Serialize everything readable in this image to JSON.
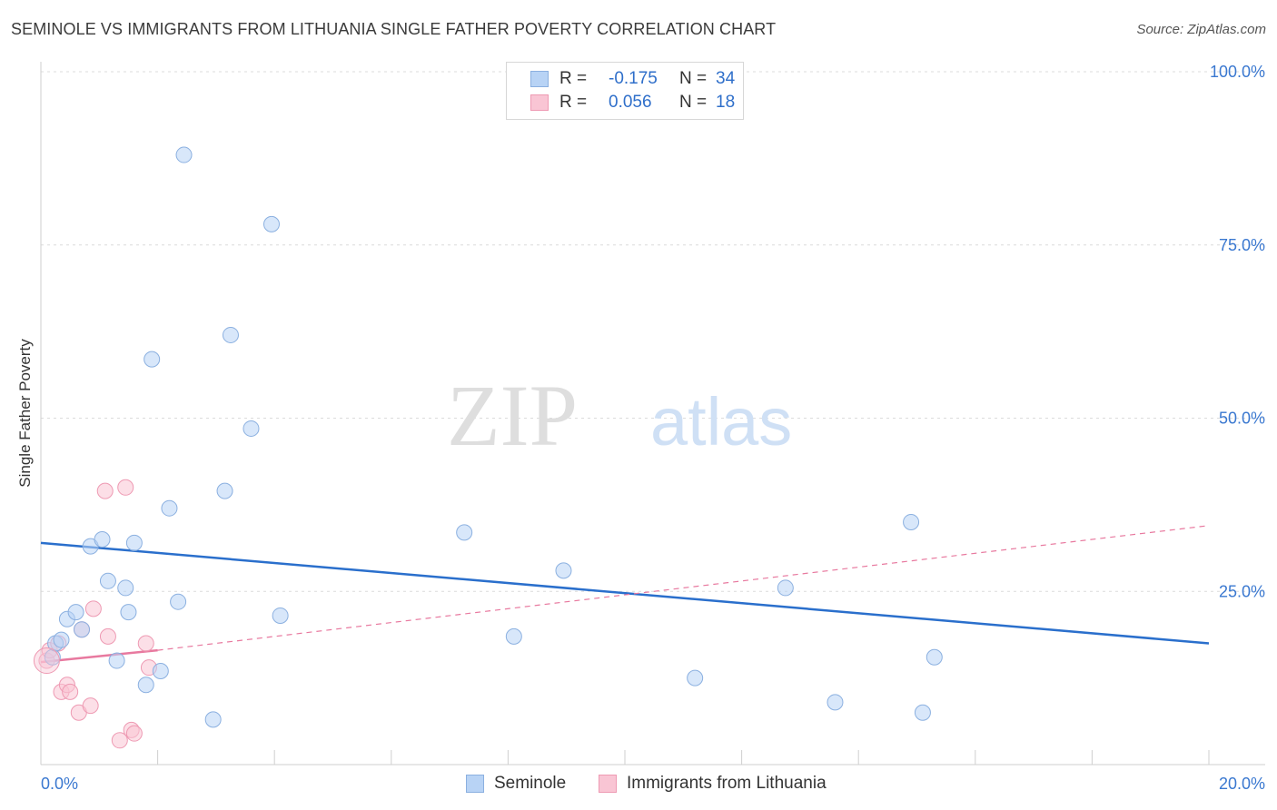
{
  "title": "SEMINOLE VS IMMIGRANTS FROM LITHUANIA SINGLE FATHER POVERTY CORRELATION CHART",
  "source": "Source: ZipAtlas.com",
  "watermark": {
    "zip": "ZIP",
    "atlas": "atlas"
  },
  "colors": {
    "seminole_fill": "#b8d3f5",
    "seminole_stroke": "#8bb0e0",
    "seminole_line": "#2a6fcc",
    "lith_fill": "#f9c5d4",
    "lith_stroke": "#ee9ab3",
    "lith_line": "#e8799f",
    "axis_text": "#3a78d0",
    "grid": "#dcdcdc"
  },
  "legend": {
    "rows": [
      {
        "r_label": "R =",
        "r_value": "-0.175",
        "n_label": "N =",
        "n_value": "34"
      },
      {
        "r_label": "R =",
        "r_value": "0.056",
        "n_label": "N =",
        "n_value": "18"
      }
    ]
  },
  "chart_data": {
    "type": "scatter",
    "title": "SEMINOLE VS IMMIGRANTS FROM LITHUANIA SINGLE FATHER POVERTY CORRELATION CHART",
    "xlabel": "",
    "ylabel": "Single Father Poverty",
    "xlim": [
      0,
      20
    ],
    "ylim": [
      0,
      105
    ],
    "x_tick_labels": [
      "0.0%",
      "20.0%"
    ],
    "y_ticks": [
      25,
      50,
      75,
      100
    ],
    "y_tick_labels": [
      "25.0%",
      "50.0%",
      "75.0%",
      "100.0%"
    ],
    "grid": true,
    "legend_position": "top-center",
    "series": [
      {
        "name": "Seminole",
        "points": [
          [
            0.2,
            15.5
          ],
          [
            0.25,
            17.5
          ],
          [
            0.35,
            18.0
          ],
          [
            0.45,
            21.0
          ],
          [
            0.6,
            22.0
          ],
          [
            0.7,
            19.5
          ],
          [
            0.85,
            31.5
          ],
          [
            1.05,
            32.5
          ],
          [
            1.15,
            26.5
          ],
          [
            1.3,
            15.0
          ],
          [
            1.45,
            25.5
          ],
          [
            1.5,
            22.0
          ],
          [
            1.6,
            32.0
          ],
          [
            1.8,
            11.5
          ],
          [
            1.9,
            58.5
          ],
          [
            2.05,
            13.5
          ],
          [
            2.2,
            37.0
          ],
          [
            2.35,
            23.5
          ],
          [
            2.45,
            88.0
          ],
          [
            2.95,
            6.5
          ],
          [
            3.15,
            39.5
          ],
          [
            3.25,
            62.0
          ],
          [
            3.6,
            48.5
          ],
          [
            3.95,
            78.0
          ],
          [
            4.1,
            21.5
          ],
          [
            7.25,
            33.5
          ],
          [
            8.1,
            18.5
          ],
          [
            8.95,
            28.0
          ],
          [
            11.2,
            12.5
          ],
          [
            12.75,
            25.5
          ],
          [
            13.6,
            9.0
          ],
          [
            14.9,
            35.0
          ],
          [
            15.1,
            7.5
          ],
          [
            15.3,
            15.5
          ]
        ],
        "trend": {
          "x": [
            0,
            20
          ],
          "y": [
            32.0,
            17.5
          ]
        }
      },
      {
        "name": "Immigrants from Lithuania",
        "points": [
          [
            0.1,
            15.0
          ],
          [
            0.15,
            16.5
          ],
          [
            0.3,
            17.5
          ],
          [
            0.35,
            10.5
          ],
          [
            0.45,
            11.5
          ],
          [
            0.5,
            10.5
          ],
          [
            0.65,
            7.5
          ],
          [
            0.7,
            19.5
          ],
          [
            0.85,
            8.5
          ],
          [
            0.9,
            22.5
          ],
          [
            1.1,
            39.5
          ],
          [
            1.15,
            18.5
          ],
          [
            1.35,
            3.5
          ],
          [
            1.45,
            40.0
          ],
          [
            1.55,
            5.0
          ],
          [
            1.6,
            4.5
          ],
          [
            1.8,
            17.5
          ],
          [
            1.85,
            14.0
          ]
        ],
        "trend_solid": {
          "x": [
            0,
            2.0
          ],
          "y": [
            14.8,
            16.5
          ]
        },
        "trend_dashed": {
          "x": [
            2.0,
            20
          ],
          "y": [
            16.5,
            34.5
          ]
        }
      }
    ]
  },
  "bottom_legend": [
    {
      "label": "Seminole"
    },
    {
      "label": "Immigrants from Lithuania"
    }
  ]
}
